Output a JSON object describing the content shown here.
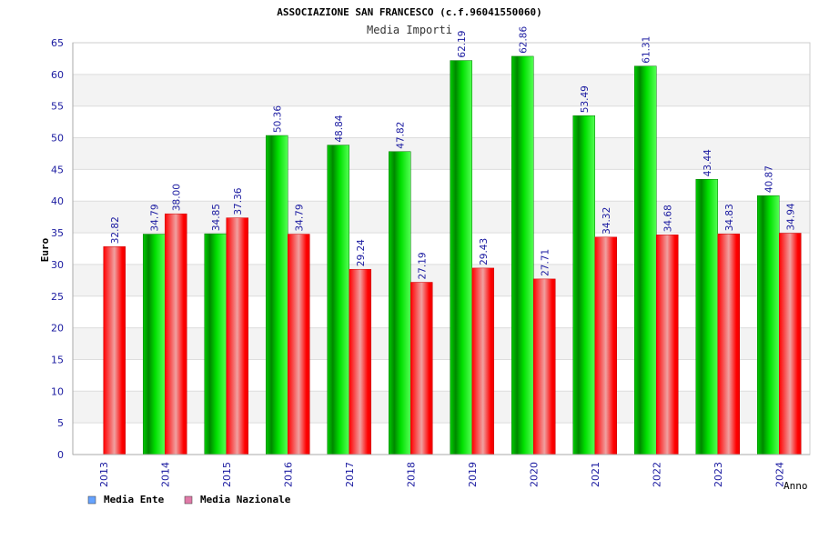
{
  "chart_data": {
    "type": "bar",
    "title": "ASSOCIAZIONE SAN FRANCESCO (c.f.96041550060)",
    "subtitle": "Media Importi",
    "xlabel": "Anno",
    "ylabel": "Euro",
    "ylim": [
      0,
      65
    ],
    "yticks": [
      0,
      5,
      10,
      15,
      20,
      25,
      30,
      35,
      40,
      45,
      50,
      55,
      60,
      65
    ],
    "categories": [
      "2013",
      "2014",
      "2015",
      "2016",
      "2017",
      "2018",
      "2019",
      "2020",
      "2021",
      "2022",
      "2023",
      "2024"
    ],
    "series": [
      {
        "name": "Media Ente",
        "values": [
          null,
          34.79,
          34.85,
          50.36,
          48.84,
          47.82,
          62.19,
          62.86,
          53.49,
          61.31,
          43.44,
          40.87
        ],
        "labels": [
          "",
          "34.79",
          "34.85",
          "50.36",
          "48.84",
          "47.82",
          "62.19",
          "62.86",
          "53.49",
          "61.31",
          "43.44",
          "40.87"
        ],
        "color": "#00b400",
        "legend_color": "#66a3ff"
      },
      {
        "name": "Media Nazionale",
        "values": [
          32.82,
          38.0,
          37.36,
          34.79,
          29.24,
          27.19,
          29.43,
          27.71,
          34.32,
          34.68,
          34.83,
          34.94
        ],
        "labels": [
          "32.82",
          "38.00",
          "37.36",
          "34.79",
          "29.24",
          "27.19",
          "29.43",
          "27.71",
          "34.32",
          "34.68",
          "34.83",
          "34.94"
        ],
        "color": "#ff0000",
        "legend_color": "#e07aa8"
      }
    ],
    "grid": true,
    "legend_position": "bottom-left"
  }
}
